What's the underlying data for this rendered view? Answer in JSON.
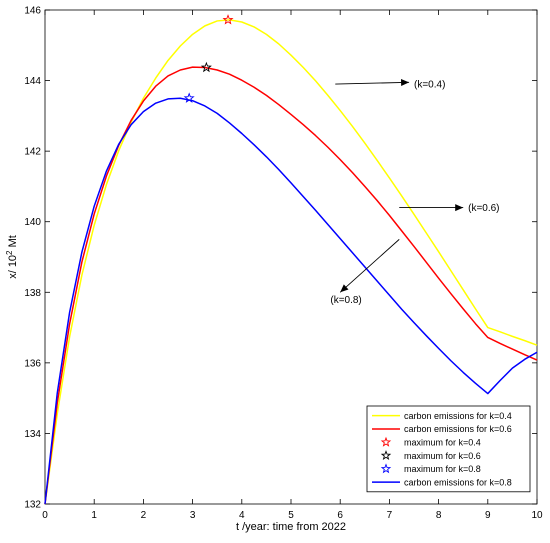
{
  "chart_data": {
    "type": "line",
    "xlabel": "t /year: time from 2022",
    "ylabel_prefix": "x/ 10",
    "ylabel_exp": "2",
    "ylabel_suffix": " Mt",
    "xlim": [
      0,
      10
    ],
    "ylim": [
      132,
      146
    ],
    "xticks": [
      0,
      1,
      2,
      3,
      4,
      5,
      6,
      7,
      8,
      9,
      10
    ],
    "yticks": [
      132,
      134,
      136,
      138,
      140,
      142,
      144,
      146
    ],
    "grid": false,
    "legend_position": "bottom-right",
    "series": [
      {
        "name": "carbon emissions for k=0.4",
        "color": "#ffff00",
        "x": [
          0,
          0.25,
          0.5,
          0.75,
          1,
          1.25,
          1.5,
          1.75,
          2,
          2.25,
          2.5,
          2.75,
          3,
          3.25,
          3.5,
          3.75,
          4,
          4.25,
          4.5,
          4.75,
          5,
          5.25,
          5.5,
          5.75,
          6,
          6.25,
          6.5,
          6.75,
          7,
          7.25,
          7.5,
          7.75,
          8,
          8.25,
          8.5,
          8.75,
          9,
          9.25,
          9.5,
          9.75,
          10
        ],
        "y": [
          132.0,
          134.56,
          136.74,
          138.49,
          139.9,
          141.06,
          142.02,
          142.82,
          143.5,
          144.07,
          144.57,
          144.98,
          145.31,
          145.55,
          145.69,
          145.72,
          145.66,
          145.52,
          145.31,
          145.04,
          144.72,
          144.37,
          143.99,
          143.58,
          143.15,
          142.7,
          142.23,
          141.74,
          141.24,
          140.73,
          140.21,
          139.68,
          139.15,
          138.61,
          138.07,
          137.53,
          137.0,
          136.88,
          136.75,
          136.63,
          136.5
        ]
      },
      {
        "name": "carbon emissions for k=0.6",
        "color": "#ff0000",
        "x": [
          0,
          0.25,
          0.5,
          0.75,
          1,
          1.25,
          1.5,
          1.75,
          2,
          2.25,
          2.5,
          2.75,
          3,
          3.25,
          3.5,
          3.75,
          4,
          4.25,
          4.5,
          4.75,
          5,
          5.25,
          5.5,
          5.75,
          6,
          6.25,
          6.5,
          6.75,
          7,
          7.25,
          7.5,
          7.75,
          8,
          8.25,
          8.5,
          8.75,
          9,
          9.25,
          9.5,
          9.75,
          10
        ],
        "y": [
          132.0,
          134.87,
          137.1,
          138.86,
          140.22,
          141.3,
          142.17,
          142.87,
          143.42,
          143.84,
          144.13,
          144.3,
          144.38,
          144.37,
          144.3,
          144.18,
          144.01,
          143.81,
          143.58,
          143.32,
          143.04,
          142.75,
          142.44,
          142.11,
          141.76,
          141.39,
          141.0,
          140.6,
          140.18,
          139.74,
          139.3,
          138.85,
          138.4,
          137.96,
          137.53,
          137.11,
          136.72,
          136.55,
          136.39,
          136.23,
          136.08
        ]
      },
      {
        "name": "carbon emissions for k=0.8",
        "color": "#0000ff",
        "x": [
          0,
          0.25,
          0.5,
          0.75,
          1,
          1.25,
          1.5,
          1.75,
          2,
          2.25,
          2.5,
          2.75,
          3,
          3.25,
          3.5,
          3.75,
          4,
          4.25,
          4.5,
          4.75,
          5,
          5.25,
          5.5,
          5.75,
          6,
          6.25,
          6.5,
          6.75,
          7,
          7.25,
          7.5,
          7.75,
          8,
          8.25,
          8.5,
          8.75,
          9,
          9.25,
          9.5,
          9.75,
          10
        ],
        "y": [
          132.0,
          135.15,
          137.43,
          139.14,
          140.44,
          141.44,
          142.2,
          142.75,
          143.12,
          143.36,
          143.48,
          143.5,
          143.43,
          143.28,
          143.07,
          142.8,
          142.5,
          142.18,
          141.84,
          141.48,
          141.1,
          140.71,
          140.32,
          139.92,
          139.52,
          139.12,
          138.72,
          138.32,
          137.92,
          137.52,
          137.14,
          136.77,
          136.41,
          136.06,
          135.73,
          135.42,
          135.13,
          135.5,
          135.85,
          136.1,
          136.3
        ]
      }
    ],
    "maxima": [
      {
        "name": "maximum for k=0.4",
        "color": "#ff0000",
        "x": 3.72,
        "y": 145.72
      },
      {
        "name": "maximum for k=0.6",
        "color": "#000000",
        "x": 3.28,
        "y": 144.37
      },
      {
        "name": "maximum for k=0.8",
        "color": "#0000ff",
        "x": 2.93,
        "y": 143.5
      }
    ],
    "annotations": [
      {
        "text": "(k=0.4)",
        "arrow_from": [
          5.9,
          143.9
        ],
        "arrow_to": [
          7.4,
          143.95
        ],
        "text_at": [
          7.5,
          143.9
        ]
      },
      {
        "text": "(k=0.6)",
        "arrow_from": [
          7.2,
          140.4
        ],
        "arrow_to": [
          8.5,
          140.4
        ],
        "text_at": [
          8.6,
          140.4
        ]
      },
      {
        "text": "(k=0.8)",
        "arrow_from": [
          7.2,
          139.5
        ],
        "arrow_to": [
          6.0,
          138.0
        ],
        "text_at": [
          5.8,
          137.8
        ]
      }
    ],
    "legend": [
      {
        "label": "carbon emissions for k=0.4",
        "kind": "line",
        "color": "#ffff00"
      },
      {
        "label": "carbon emissions for k=0.6",
        "kind": "line",
        "color": "#ff0000"
      },
      {
        "label": "maximum for k=0.4",
        "kind": "star",
        "color": "#ff0000"
      },
      {
        "label": "maximum for k=0.6",
        "kind": "star",
        "color": "#000000"
      },
      {
        "label": "maximum for k=0.8",
        "kind": "star",
        "color": "#0000ff"
      },
      {
        "label": "carbon emissions for k=0.8",
        "kind": "line",
        "color": "#0000ff"
      }
    ]
  }
}
